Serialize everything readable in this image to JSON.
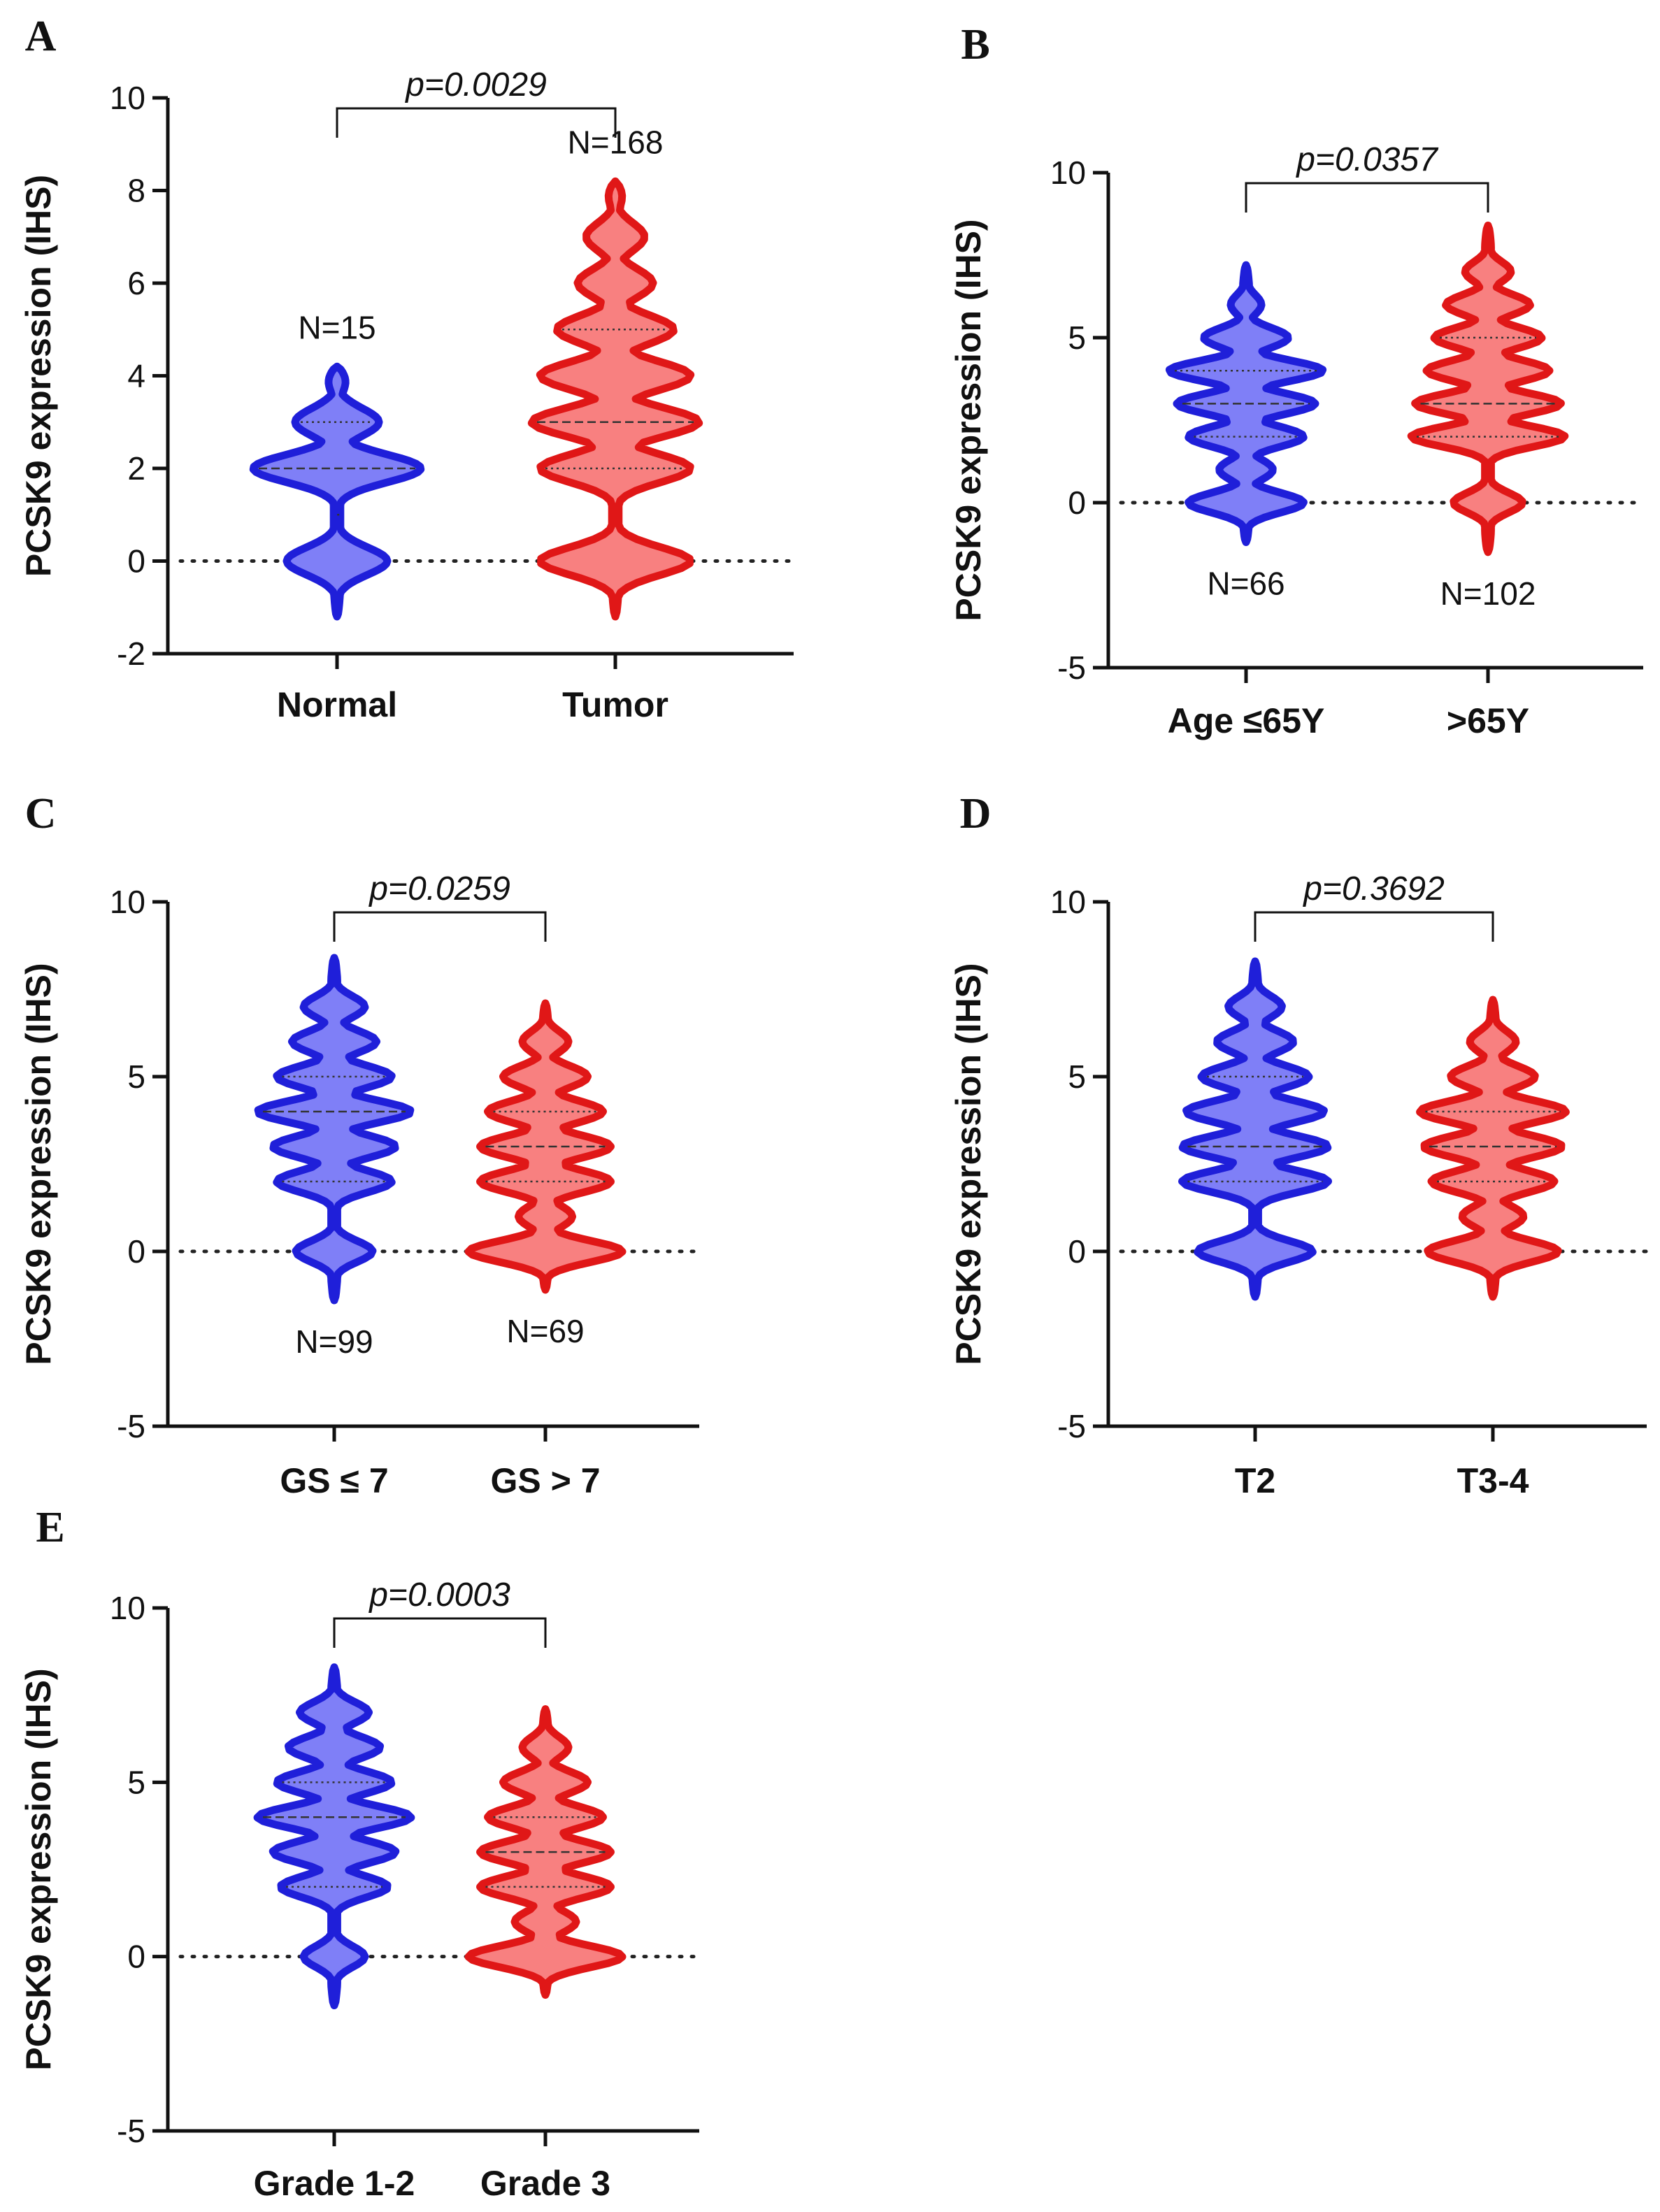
{
  "figure": {
    "colors": {
      "blue_fill": "#7f7ff7",
      "blue_line": "#1f1fd9",
      "red_fill": "#f88080",
      "red_line": "#e01717",
      "axis": "#111111"
    }
  },
  "chart_data": [
    {
      "type": "violin",
      "panel": "A",
      "ylabel": "PCSK9 expression (IHS)",
      "ylim": [
        -2,
        10
      ],
      "yticks": [
        -2,
        0,
        2,
        4,
        6,
        8,
        10
      ],
      "categories": [
        "Normal",
        "Tumor"
      ],
      "series": [
        {
          "name": "Normal",
          "color": "blue",
          "n_label": "N=15",
          "n_pos": "top",
          "min": -1.2,
          "max": 4.2,
          "median": 2,
          "q1": 1,
          "q3": 3,
          "modes": [
            [
              0,
              0.6
            ],
            [
              2,
              1.0
            ],
            [
              3,
              0.5
            ],
            [
              4,
              0.15
            ]
          ]
        },
        {
          "name": "Tumor",
          "color": "red",
          "n_label": "N=168",
          "n_pos": "top",
          "min": -1.2,
          "max": 8.2,
          "median": 3,
          "q1": 2,
          "q3": 5,
          "modes": [
            [
              0,
              0.9
            ],
            [
              2,
              0.9
            ],
            [
              3,
              1.0
            ],
            [
              4,
              0.9
            ],
            [
              5,
              0.7
            ],
            [
              6,
              0.45
            ],
            [
              7,
              0.35
            ],
            [
              8,
              0.12
            ]
          ]
        }
      ],
      "comparison": {
        "label": "p=0.0029"
      }
    },
    {
      "type": "violin",
      "panel": "B",
      "ylabel": "PCSK9 expression (IHS)",
      "ylim": [
        -5,
        10
      ],
      "yticks": [
        -5,
        0,
        5,
        10
      ],
      "categories": [
        "Age ≤65Y",
        ">65Y"
      ],
      "series": [
        {
          "name": "Age ≤65Y",
          "color": "blue",
          "n_label": "N=66",
          "n_pos": "bottom",
          "min": -1.2,
          "max": 7.2,
          "median": 3,
          "q1": 2,
          "q3": 4,
          "modes": [
            [
              0,
              0.75
            ],
            [
              1,
              0.35
            ],
            [
              2,
              0.75
            ],
            [
              3,
              0.9
            ],
            [
              4,
              1.0
            ],
            [
              5,
              0.55
            ],
            [
              6,
              0.2
            ]
          ]
        },
        {
          "name": ">65Y",
          "color": "red",
          "n_label": "N=102",
          "n_pos": "bottom",
          "min": -1.5,
          "max": 8.4,
          "median": 3,
          "q1": 2,
          "q3": 5,
          "modes": [
            [
              0,
              0.45
            ],
            [
              2,
              1.0
            ],
            [
              3,
              0.95
            ],
            [
              4,
              0.8
            ],
            [
              5,
              0.7
            ],
            [
              6,
              0.55
            ],
            [
              7,
              0.3
            ]
          ]
        }
      ],
      "comparison": {
        "label": "p=0.0357"
      }
    },
    {
      "type": "violin",
      "panel": "C",
      "ylabel": "PCSK9 expression (IHS)",
      "ylim": [
        -5,
        10
      ],
      "yticks": [
        -5,
        0,
        5,
        10
      ],
      "categories": [
        "GS ≤ 7",
        "GS > 7"
      ],
      "series": [
        {
          "name": "GS ≤ 7",
          "color": "blue",
          "n_label": "N=99",
          "n_pos": "bottom",
          "min": -1.4,
          "max": 8.4,
          "median": 4,
          "q1": 2,
          "q3": 5,
          "modes": [
            [
              0,
              0.5
            ],
            [
              2,
              0.75
            ],
            [
              3,
              0.8
            ],
            [
              4,
              1.0
            ],
            [
              5,
              0.75
            ],
            [
              6,
              0.55
            ],
            [
              7,
              0.4
            ]
          ]
        },
        {
          "name": "GS > 7",
          "color": "red",
          "n_label": "N=69",
          "n_pos": "bottom",
          "min": -1.1,
          "max": 7.1,
          "median": 3,
          "q1": 2,
          "q3": 4,
          "modes": [
            [
              0,
              1.0
            ],
            [
              1,
              0.35
            ],
            [
              2,
              0.85
            ],
            [
              3,
              0.85
            ],
            [
              4,
              0.75
            ],
            [
              5,
              0.55
            ],
            [
              6,
              0.3
            ]
          ]
        }
      ],
      "comparison": {
        "label": "p=0.0259"
      }
    },
    {
      "type": "violin",
      "panel": "D",
      "ylabel": "PCSK9 expression (IHS)",
      "ylim": [
        -5,
        10
      ],
      "yticks": [
        -5,
        0,
        5,
        10
      ],
      "categories": [
        "T2",
        "T3-4"
      ],
      "series": [
        {
          "name": "T2",
          "color": "blue",
          "n_label": "",
          "n_pos": "none",
          "min": -1.3,
          "max": 8.3,
          "median": 3,
          "q1": 2,
          "q3": 5,
          "modes": [
            [
              0,
              0.75
            ],
            [
              2,
              0.95
            ],
            [
              3,
              0.95
            ],
            [
              4,
              0.9
            ],
            [
              5,
              0.7
            ],
            [
              6,
              0.5
            ],
            [
              7,
              0.35
            ]
          ]
        },
        {
          "name": "T3-4",
          "color": "red",
          "n_label": "",
          "n_pos": "none",
          "min": -1.3,
          "max": 7.2,
          "median": 3,
          "q1": 2,
          "q3": 4,
          "modes": [
            [
              0,
              0.85
            ],
            [
              1,
              0.4
            ],
            [
              2,
              0.8
            ],
            [
              3,
              0.9
            ],
            [
              4,
              0.95
            ],
            [
              5,
              0.55
            ],
            [
              6,
              0.3
            ]
          ]
        }
      ],
      "comparison": {
        "label": "p=0.3692"
      }
    },
    {
      "type": "violin",
      "panel": "E",
      "ylabel": "PCSK9 expression (IHS)",
      "ylim": [
        -5,
        10
      ],
      "yticks": [
        -5,
        0,
        5,
        10
      ],
      "categories": [
        "Grade 1-2",
        "Grade 3"
      ],
      "series": [
        {
          "name": "Grade 1-2",
          "color": "blue",
          "n_label": "",
          "n_pos": "none",
          "min": -1.4,
          "max": 8.3,
          "median": 4,
          "q1": 2,
          "q3": 5,
          "modes": [
            [
              0,
              0.4
            ],
            [
              2,
              0.7
            ],
            [
              3,
              0.8
            ],
            [
              4,
              1.0
            ],
            [
              5,
              0.75
            ],
            [
              6,
              0.6
            ],
            [
              7,
              0.45
            ]
          ]
        },
        {
          "name": "Grade 3",
          "color": "red",
          "n_label": "",
          "n_pos": "none",
          "min": -1.1,
          "max": 7.1,
          "median": 3,
          "q1": 2,
          "q3": 4,
          "modes": [
            [
              0,
              1.0
            ],
            [
              1,
              0.4
            ],
            [
              2,
              0.85
            ],
            [
              3,
              0.85
            ],
            [
              4,
              0.75
            ],
            [
              5,
              0.55
            ],
            [
              6,
              0.3
            ]
          ]
        }
      ],
      "comparison": {
        "label": "p=0.0003"
      }
    }
  ]
}
